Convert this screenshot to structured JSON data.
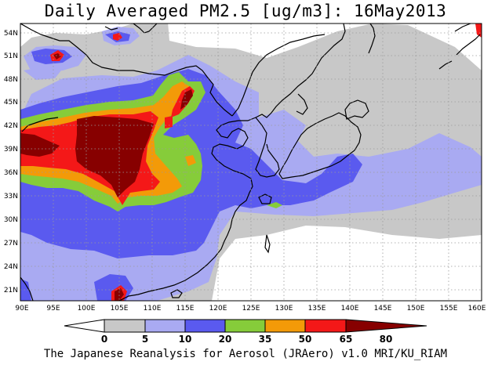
{
  "title": "Daily Averaged PM2.5 [ug/m3]: 16May2013",
  "credit": "The Japanese Reanalysis for Aerosol (JRAero) v1.0 MRI/KU_RIAM",
  "map": {
    "lon_labels": [
      "90E",
      "95E",
      "100E",
      "105E",
      "110E",
      "115E",
      "120E",
      "125E",
      "130E",
      "135E",
      "140E",
      "145E",
      "150E",
      "155E",
      "160E"
    ],
    "lat_labels": [
      "54N",
      "51N",
      "48N",
      "45N",
      "42N",
      "39N",
      "36N",
      "33N",
      "30N",
      "27N",
      "24N",
      "21N"
    ],
    "background_color": "#ffffff",
    "gridline_color": "#9a9a9a",
    "coastline_color": "#000000"
  },
  "colorbar": {
    "ticks": [
      "0",
      "5",
      "10",
      "20",
      "35",
      "50",
      "65",
      "80"
    ],
    "levels": [
      {
        "from": "0",
        "to": "5",
        "color": "#ffffff"
      },
      {
        "from": "5",
        "to": "10",
        "color": "#c8c8c8"
      },
      {
        "from": "10",
        "to": "20",
        "color": "#a9aaf2"
      },
      {
        "from": "20",
        "to": "35",
        "color": "#5a5aef"
      },
      {
        "from": "35",
        "to": "50",
        "color": "#86cc3a"
      },
      {
        "from": "50",
        "to": "65",
        "color": "#f39a08"
      },
      {
        "from": "65",
        "to": "80",
        "color": "#f41818"
      },
      {
        "from": "80",
        "to": "",
        "color": "#870000"
      }
    ]
  }
}
